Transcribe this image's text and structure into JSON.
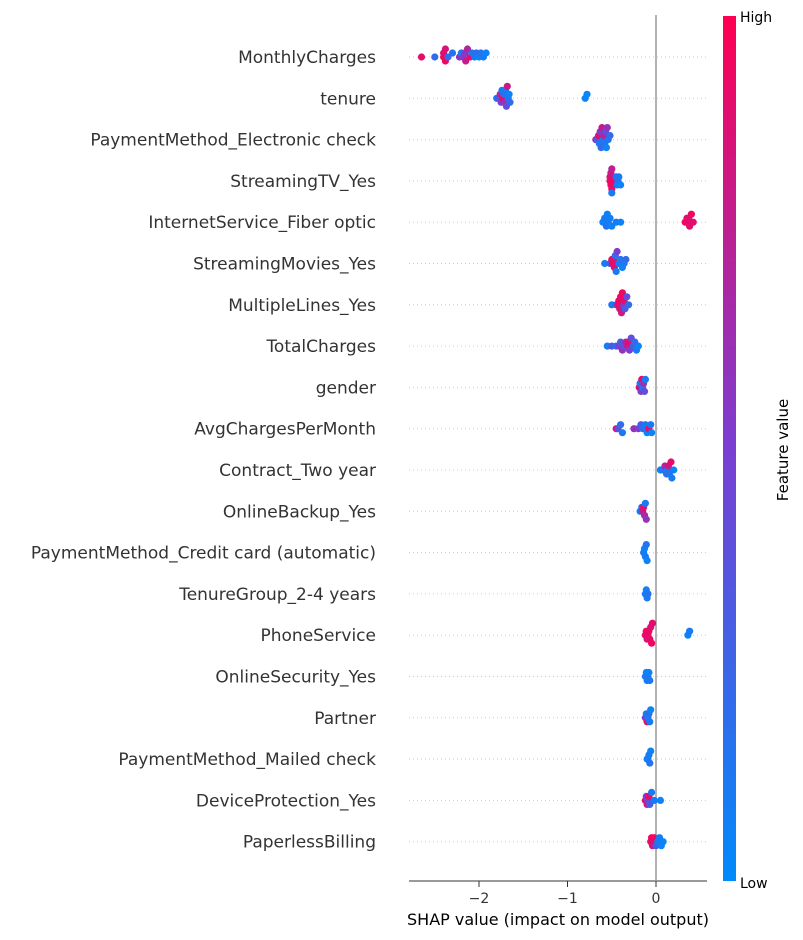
{
  "chart_data": {
    "type": "scatter",
    "subtype": "shap-beeswarm",
    "xlabel": "SHAP value (impact on model output)",
    "x_ticks": [
      -2,
      -1,
      0
    ],
    "x_tick_labels": [
      "−2",
      "−1",
      "0"
    ],
    "xlim": [
      -2.8,
      0.6
    ],
    "grid": false,
    "colorbar": {
      "label": "Feature value",
      "high_label": "High",
      "low_label": "Low",
      "low_color": "#008afb",
      "high_color": "#ff0052",
      "placement": "right"
    },
    "features": [
      {
        "name": "MonthlyCharges",
        "points": [
          [
            -2.65,
            0.9
          ],
          [
            -2.5,
            0.2
          ],
          [
            -2.4,
            0.95
          ],
          [
            -2.4,
            0.9
          ],
          [
            -2.38,
            0.95
          ],
          [
            -2.38,
            0.85
          ],
          [
            -2.35,
            0.2
          ],
          [
            -2.3,
            0.15
          ],
          [
            -2.22,
            0.6
          ],
          [
            -2.2,
            0.1
          ],
          [
            -2.18,
            0.5
          ],
          [
            -2.16,
            0.55
          ],
          [
            -2.15,
            0.8
          ],
          [
            -2.13,
            0.7
          ],
          [
            -2.1,
            0.9
          ],
          [
            -2.08,
            0.15
          ],
          [
            -2.05,
            0.1
          ],
          [
            -2.03,
            0.2
          ],
          [
            -2.0,
            0.05
          ],
          [
            -1.98,
            0.15
          ],
          [
            -1.95,
            0.1
          ],
          [
            -1.92,
            0.05
          ]
        ]
      },
      {
        "name": "tenure",
        "points": [
          [
            -1.8,
            0.1
          ],
          [
            -1.78,
            0.3
          ],
          [
            -1.76,
            0.7
          ],
          [
            -1.75,
            0.5
          ],
          [
            -1.74,
            0.1
          ],
          [
            -1.73,
            0.9
          ],
          [
            -1.72,
            0.2
          ],
          [
            -1.71,
            0.6
          ],
          [
            -1.7,
            0.1
          ],
          [
            -1.69,
            0.4
          ],
          [
            -1.68,
            0.8
          ],
          [
            -1.67,
            0.15
          ],
          [
            -1.66,
            0.05
          ],
          [
            -1.65,
            0.2
          ],
          [
            -0.8,
            0.05
          ],
          [
            -0.78,
            0.02
          ]
        ]
      },
      {
        "name": "PaymentMethod_Electronic check",
        "points": [
          [
            -0.68,
            0.6
          ],
          [
            -0.66,
            0.3
          ],
          [
            -0.65,
            0.9
          ],
          [
            -0.64,
            0.1
          ],
          [
            -0.63,
            0.5
          ],
          [
            -0.62,
            0.2
          ],
          [
            -0.61,
            0.8
          ],
          [
            -0.6,
            0.1
          ],
          [
            -0.59,
            0.7
          ],
          [
            -0.58,
            0.15
          ],
          [
            -0.57,
            0.4
          ],
          [
            -0.56,
            0.05
          ],
          [
            -0.55,
            0.6
          ],
          [
            -0.54,
            0.1
          ],
          [
            -0.52,
            0.2
          ]
        ]
      },
      {
        "name": "StreamingTV_Yes",
        "points": [
          [
            -0.52,
            0.9
          ],
          [
            -0.52,
            0.85
          ],
          [
            -0.51,
            0.95
          ],
          [
            -0.51,
            0.8
          ],
          [
            -0.5,
            0.9
          ],
          [
            -0.5,
            0.75
          ],
          [
            -0.5,
            0.1
          ],
          [
            -0.49,
            0.95
          ],
          [
            -0.45,
            0.1
          ],
          [
            -0.44,
            0.05
          ],
          [
            -0.43,
            0.15
          ],
          [
            -0.42,
            0.1
          ],
          [
            -0.4,
            0.05
          ]
        ]
      },
      {
        "name": "InternetService_Fiber optic",
        "points": [
          [
            -0.6,
            0.05
          ],
          [
            -0.58,
            0.1
          ],
          [
            -0.56,
            0.15
          ],
          [
            -0.55,
            0.05
          ],
          [
            -0.54,
            0.1
          ],
          [
            -0.52,
            0.08
          ],
          [
            -0.5,
            0.05
          ],
          [
            -0.45,
            0.1
          ],
          [
            -0.4,
            0.05
          ],
          [
            0.33,
            0.95
          ],
          [
            0.35,
            0.9
          ],
          [
            0.36,
            0.95
          ],
          [
            0.37,
            0.85
          ],
          [
            0.38,
            0.9
          ],
          [
            0.4,
            0.95
          ],
          [
            0.42,
            0.9
          ]
        ]
      },
      {
        "name": "StreamingMovies_Yes",
        "points": [
          [
            -0.58,
            0.1
          ],
          [
            -0.52,
            0.3
          ],
          [
            -0.5,
            0.9
          ],
          [
            -0.49,
            0.95
          ],
          [
            -0.48,
            0.85
          ],
          [
            -0.47,
            0.9
          ],
          [
            -0.46,
            0.2
          ],
          [
            -0.45,
            0.1
          ],
          [
            -0.44,
            0.5
          ],
          [
            -0.42,
            0.1
          ],
          [
            -0.4,
            0.15
          ],
          [
            -0.38,
            0.05
          ],
          [
            -0.36,
            0.1
          ],
          [
            -0.34,
            0.2
          ]
        ]
      },
      {
        "name": "MultipleLines_Yes",
        "points": [
          [
            -0.5,
            0.1
          ],
          [
            -0.45,
            0.3
          ],
          [
            -0.43,
            0.9
          ],
          [
            -0.42,
            0.95
          ],
          [
            -0.41,
            0.85
          ],
          [
            -0.4,
            0.9
          ],
          [
            -0.39,
            0.8
          ],
          [
            -0.38,
            0.95
          ],
          [
            -0.37,
            0.6
          ],
          [
            -0.36,
            0.9
          ],
          [
            -0.35,
            0.3
          ],
          [
            -0.33,
            0.4
          ],
          [
            -0.31,
            0.2
          ]
        ]
      },
      {
        "name": "TotalCharges",
        "points": [
          [
            -0.55,
            0.1
          ],
          [
            -0.5,
            0.3
          ],
          [
            -0.45,
            0.2
          ],
          [
            -0.42,
            0.5
          ],
          [
            -0.4,
            0.3
          ],
          [
            -0.38,
            0.6
          ],
          [
            -0.36,
            0.4
          ],
          [
            -0.34,
            0.7
          ],
          [
            -0.32,
            0.8
          ],
          [
            -0.31,
            0.9
          ],
          [
            -0.3,
            0.5
          ],
          [
            -0.28,
            0.4
          ],
          [
            -0.26,
            0.3
          ],
          [
            -0.24,
            0.2
          ],
          [
            -0.22,
            0.1
          ],
          [
            -0.2,
            0.05
          ]
        ]
      },
      {
        "name": "gender",
        "points": [
          [
            -0.19,
            0.9
          ],
          [
            -0.18,
            0.1
          ],
          [
            -0.17,
            0.5
          ],
          [
            -0.16,
            0.9
          ],
          [
            -0.15,
            0.1
          ],
          [
            -0.14,
            0.6
          ],
          [
            -0.13,
            0.4
          ],
          [
            -0.12,
            0.1
          ]
        ]
      },
      {
        "name": "AvgChargesPerMonth",
        "points": [
          [
            -0.45,
            0.9
          ],
          [
            -0.43,
            0.4
          ],
          [
            -0.4,
            0.2
          ],
          [
            -0.38,
            0.1
          ],
          [
            -0.25,
            0.6
          ],
          [
            -0.2,
            0.5
          ],
          [
            -0.17,
            0.3
          ],
          [
            -0.15,
            0.2
          ],
          [
            -0.12,
            0.1
          ],
          [
            -0.1,
            0.05
          ],
          [
            -0.08,
            0.9
          ],
          [
            -0.06,
            0.1
          ],
          [
            -0.05,
            0.05
          ]
        ]
      },
      {
        "name": "Contract_Two year",
        "points": [
          [
            0.05,
            0.05
          ],
          [
            0.08,
            0.1
          ],
          [
            0.1,
            0.7
          ],
          [
            0.12,
            0.2
          ],
          [
            0.13,
            0.1
          ],
          [
            0.14,
            0.8
          ],
          [
            0.15,
            0.15
          ],
          [
            0.17,
            0.9
          ],
          [
            0.18,
            0.1
          ],
          [
            0.2,
            0.05
          ]
        ]
      },
      {
        "name": "OnlineBackup_Yes",
        "points": [
          [
            -0.18,
            0.1
          ],
          [
            -0.16,
            0.2
          ],
          [
            -0.15,
            0.8
          ],
          [
            -0.14,
            0.9
          ],
          [
            -0.13,
            0.7
          ],
          [
            -0.12,
            0.1
          ],
          [
            -0.11,
            0.6
          ]
        ]
      },
      {
        "name": "PaymentMethod_Credit card (automatic)",
        "points": [
          [
            -0.14,
            0.1
          ],
          [
            -0.13,
            0.05
          ],
          [
            -0.12,
            0.1
          ],
          [
            -0.11,
            0.15
          ],
          [
            -0.1,
            0.05
          ]
        ]
      },
      {
        "name": "TenureGroup_2-4 years",
        "points": [
          [
            -0.12,
            0.1
          ],
          [
            -0.11,
            0.05
          ],
          [
            -0.1,
            0.1
          ],
          [
            -0.09,
            0.15
          ]
        ]
      },
      {
        "name": "PhoneService",
        "points": [
          [
            -0.12,
            0.9
          ],
          [
            -0.11,
            0.95
          ],
          [
            -0.1,
            0.85
          ],
          [
            -0.09,
            0.9
          ],
          [
            -0.08,
            0.95
          ],
          [
            -0.07,
            0.9
          ],
          [
            -0.06,
            0.85
          ],
          [
            -0.05,
            0.95
          ],
          [
            -0.04,
            0.9
          ],
          [
            0.36,
            0.05
          ],
          [
            0.38,
            0.1
          ]
        ]
      },
      {
        "name": "OnlineSecurity_Yes",
        "points": [
          [
            -0.12,
            0.1
          ],
          [
            -0.11,
            0.05
          ],
          [
            -0.1,
            0.1
          ],
          [
            -0.09,
            0.15
          ],
          [
            -0.08,
            0.05
          ],
          [
            -0.07,
            0.1
          ]
        ]
      },
      {
        "name": "Partner",
        "points": [
          [
            -0.12,
            0.5
          ],
          [
            -0.11,
            0.1
          ],
          [
            -0.1,
            0.9
          ],
          [
            -0.09,
            0.1
          ],
          [
            -0.08,
            0.2
          ],
          [
            -0.07,
            0.1
          ],
          [
            -0.06,
            0.05
          ]
        ]
      },
      {
        "name": "PaymentMethod_Mailed check",
        "points": [
          [
            -0.1,
            0.1
          ],
          [
            -0.09,
            0.05
          ],
          [
            -0.08,
            0.1
          ],
          [
            -0.07,
            0.15
          ],
          [
            -0.06,
            0.05
          ]
        ]
      },
      {
        "name": "DeviceProtection_Yes",
        "points": [
          [
            -0.12,
            0.9
          ],
          [
            -0.11,
            0.5
          ],
          [
            -0.1,
            0.8
          ],
          [
            -0.09,
            0.4
          ],
          [
            -0.08,
            0.9
          ],
          [
            -0.07,
            0.3
          ],
          [
            -0.05,
            0.1
          ],
          [
            -0.02,
            0.1
          ],
          [
            0.05,
            0.05
          ]
        ]
      },
      {
        "name": "PaperlessBilling",
        "points": [
          [
            -0.06,
            0.9
          ],
          [
            -0.05,
            0.95
          ],
          [
            -0.04,
            0.85
          ],
          [
            -0.03,
            0.9
          ],
          [
            -0.02,
            0.95
          ],
          [
            0.0,
            0.3
          ],
          [
            0.02,
            0.1
          ],
          [
            0.04,
            0.1
          ],
          [
            0.06,
            0.05
          ],
          [
            0.08,
            0.05
          ]
        ]
      }
    ]
  }
}
